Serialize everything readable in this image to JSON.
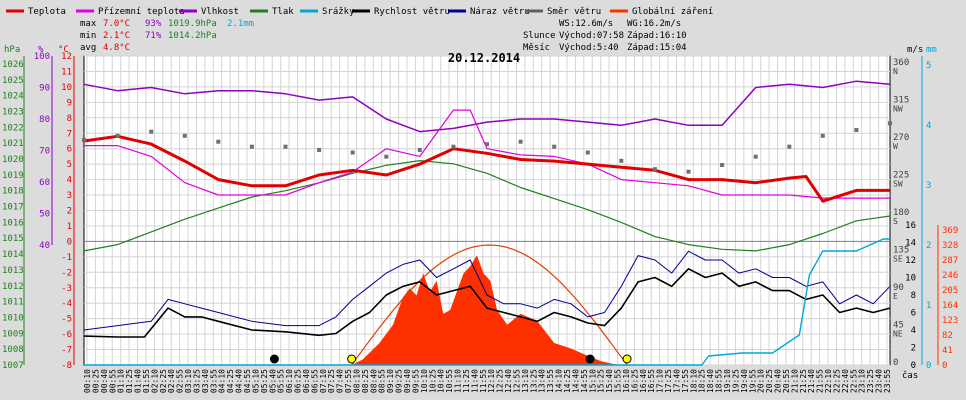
{
  "legend": [
    {
      "label": "Teplota",
      "color": "#e00000"
    },
    {
      "label": "Přízemní teplota",
      "color": "#e000e0"
    },
    {
      "label": "Vlhkost",
      "color": "#9000c0"
    },
    {
      "label": "Tlak",
      "color": "#208020"
    },
    {
      "label": "Srážky",
      "color": "#00a8d8"
    },
    {
      "label": "Rychlost větru",
      "color": "#000000"
    },
    {
      "label": "Náraz větru",
      "color": "#000090"
    },
    {
      "label": "Směr větru",
      "color": "#606060"
    },
    {
      "label": "Globální záření",
      "color": "#ff3000"
    }
  ],
  "stats": {
    "max_label": "max",
    "max_temp": "7.0°C",
    "max_hum": "93%",
    "max_press": "1019.9hPa",
    "max_rain": "2.1mm",
    "min_label": "min",
    "min_temp": "2.1°C",
    "min_hum": "71%",
    "min_press": "1014.2hPa",
    "avg_label": "avg",
    "avg_temp": "4.8°C"
  },
  "wind_info": {
    "ws": "WS:12.6m/s",
    "wg": "WG:16.2m/s"
  },
  "sun_info": {
    "label": "Slunce",
    "rise": "Východ:07:58",
    "set": "Západ:16:10"
  },
  "moon_info": {
    "label": "Měsíc",
    "rise": "Východ:5:40",
    "set": "Západ:15:04"
  },
  "colors": {
    "temp": "#e00000",
    "ground": "#e000e0",
    "hum": "#9000c0",
    "press": "#208020",
    "rain": "#00a8d8",
    "wind": "#000000",
    "gust": "#000090",
    "dir": "#707070",
    "rad": "#ff3000"
  },
  "chart_data": {
    "type": "line",
    "title": "20.12.2014",
    "xlabel": "čas",
    "x_ticks": [
      "00:10",
      "00:25",
      "00:40",
      "00:55",
      "01:10",
      "01:25",
      "01:40",
      "01:55",
      "02:10",
      "02:25",
      "02:40",
      "02:55",
      "03:10",
      "03:25",
      "03:40",
      "03:55",
      "04:10",
      "04:25",
      "04:40",
      "04:55",
      "05:10",
      "05:25",
      "05:40",
      "05:55",
      "06:10",
      "06:25",
      "06:40",
      "06:55",
      "07:10",
      "07:25",
      "07:40",
      "07:55",
      "08:10",
      "08:25",
      "08:40",
      "08:55",
      "09:10",
      "09:25",
      "09:40",
      "09:55",
      "10:10",
      "10:25",
      "10:40",
      "10:55",
      "11:10",
      "11:25",
      "11:40",
      "11:55",
      "12:10",
      "12:25",
      "12:40",
      "12:55",
      "13:10",
      "13:25",
      "13:40",
      "13:55",
      "14:10",
      "14:25",
      "14:40",
      "14:55",
      "15:10",
      "15:25",
      "15:40",
      "15:55",
      "16:10",
      "16:25",
      "16:40",
      "16:55",
      "17:10",
      "17:25",
      "17:40",
      "17:55",
      "18:10",
      "18:25",
      "18:40",
      "18:55",
      "19:10",
      "19:25",
      "19:40",
      "19:55",
      "20:10",
      "20:25",
      "20:40",
      "20:55",
      "21:10",
      "21:25",
      "21:40",
      "21:55",
      "22:10",
      "22:25",
      "22:40",
      "22:55",
      "23:10",
      "23:25",
      "23:40",
      "23:55"
    ],
    "axes": {
      "pressure": {
        "label": "hPa",
        "ticks": [
          "1026",
          "1025",
          "1024",
          "1023",
          "1022",
          "1021",
          "1020",
          "1019",
          "1018",
          "1017",
          "1016",
          "1015",
          "1014",
          "1013",
          "1012",
          "1011",
          "1010",
          "1009",
          "1008",
          "1007"
        ]
      },
      "humidity": {
        "label": "%",
        "ticks": [
          "100",
          "90",
          "80",
          "70",
          "60",
          "50",
          "40"
        ]
      },
      "temperature": {
        "label": "°C",
        "ticks": [
          "12",
          "11",
          "10",
          "9",
          "8",
          "7",
          "6",
          "5",
          "4",
          "3",
          "2",
          "1",
          "0",
          "-1",
          "-2",
          "-3",
          "-4",
          "-5",
          "-6",
          "-7",
          "-8"
        ]
      },
      "wind_dir": {
        "ticks": [
          "360",
          "315",
          "270",
          "225",
          "180",
          "135",
          "90",
          "45",
          "0"
        ],
        "names": [
          "N",
          "NW",
          "W",
          "SW",
          "S",
          "SE",
          "E",
          "NE"
        ]
      },
      "wind_speed": {
        "label": "m/s",
        "ticks": [
          "16",
          "14",
          "12",
          "10",
          "8",
          "6",
          "4",
          "2",
          "0"
        ]
      },
      "rain": {
        "label": "mm",
        "ticks": [
          "5",
          "4",
          "3",
          "2",
          "1",
          "0"
        ]
      },
      "radiation": {
        "ticks": [
          "369",
          "328",
          "287",
          "246",
          "205",
          "164",
          "123",
          "82",
          "41",
          "0"
        ]
      }
    },
    "series": [
      {
        "name": "Teplota",
        "unit": "°C",
        "t": [
          0,
          1,
          2,
          3,
          4,
          5,
          6,
          7,
          8,
          9,
          10,
          11,
          12,
          13,
          14,
          15,
          16,
          17,
          18,
          19,
          20,
          21,
          21.5,
          22,
          23,
          24
        ],
        "values": [
          6.5,
          6.8,
          6.3,
          5.2,
          4.0,
          3.6,
          3.6,
          4.3,
          4.6,
          4.3,
          5.0,
          6.0,
          5.7,
          5.3,
          5.2,
          5.0,
          4.8,
          4.6,
          4.0,
          4.0,
          3.8,
          4.1,
          4.2,
          2.6,
          3.3,
          3.3
        ]
      },
      {
        "name": "Přízemní teplota",
        "unit": "°C",
        "t": [
          0,
          1,
          2,
          3,
          4,
          5,
          6,
          7,
          8,
          9,
          10,
          11,
          11.5,
          12,
          13,
          14,
          15,
          16,
          17,
          18,
          19,
          20,
          21,
          22,
          23,
          24
        ],
        "values": [
          6.2,
          6.2,
          5.5,
          3.8,
          3.0,
          3.0,
          3.0,
          3.8,
          4.5,
          6.0,
          5.5,
          8.5,
          8.5,
          6.0,
          5.6,
          5.5,
          5.0,
          4.0,
          3.8,
          3.6,
          3.0,
          3.0,
          3.0,
          2.8,
          2.8,
          2.8
        ]
      },
      {
        "name": "Vlhkost",
        "unit": "%",
        "t": [
          0,
          1,
          2,
          3,
          4,
          5,
          6,
          7,
          8,
          9,
          10,
          11,
          12,
          13,
          14,
          15,
          16,
          17,
          18,
          19,
          20,
          21,
          22,
          23,
          24
        ],
        "values": [
          91,
          89,
          90,
          88,
          89,
          89,
          88,
          86,
          87,
          80,
          76,
          77,
          79,
          80,
          80,
          79,
          78,
          80,
          78,
          78,
          90,
          91,
          90,
          92,
          91
        ]
      },
      {
        "name": "Tlak",
        "unit": "hPa",
        "t": [
          0,
          1,
          2,
          3,
          4,
          5,
          6,
          7,
          8,
          9,
          10,
          11,
          12,
          13,
          14,
          15,
          16,
          17,
          18,
          19,
          20,
          21,
          22,
          23,
          24
        ],
        "values": [
          1014.2,
          1014.6,
          1015.4,
          1016.2,
          1016.9,
          1017.6,
          1018.0,
          1018.5,
          1019.1,
          1019.6,
          1019.9,
          1019.7,
          1019.1,
          1018.2,
          1017.5,
          1016.8,
          1016.0,
          1015.1,
          1014.6,
          1014.3,
          1014.2,
          1014.6,
          1015.3,
          1016.1,
          1016.4
        ]
      },
      {
        "name": "Srážky",
        "unit": "mm",
        "t": [
          0,
          18.4,
          18.6,
          19.6,
          20.5,
          21.3,
          21.6,
          22.0,
          23.0,
          23.8,
          24
        ],
        "values": [
          0,
          0,
          0.15,
          0.2,
          0.2,
          0.5,
          1.5,
          1.9,
          1.9,
          2.1,
          2.1
        ]
      },
      {
        "name": "Rychlost větru",
        "unit": "m/s",
        "t": [
          0,
          1,
          1.8,
          2.5,
          3,
          3.5,
          4,
          5,
          6,
          7,
          7.5,
          8,
          8.5,
          9,
          9.5,
          10,
          10.5,
          11,
          11.5,
          12,
          12.5,
          13,
          13.5,
          14,
          14.5,
          15,
          15.5,
          16,
          16.5,
          17,
          17.5,
          18,
          18.5,
          19,
          19.5,
          20,
          20.5,
          21,
          21.5,
          22,
          22.5,
          23,
          23.5,
          24
        ],
        "values": [
          3.3,
          3.2,
          3.2,
          6.5,
          5.5,
          5.5,
          5.0,
          4.0,
          3.8,
          3.4,
          3.6,
          5.0,
          6.0,
          8.0,
          9.0,
          9.5,
          8.0,
          8.5,
          9.0,
          6.5,
          6.0,
          5.5,
          5.0,
          6.0,
          5.5,
          4.8,
          4.5,
          6.5,
          9.5,
          10.0,
          9.0,
          11.0,
          10.0,
          10.5,
          9.0,
          9.5,
          8.5,
          8.5,
          7.5,
          8.0,
          6.0,
          6.5,
          6.0,
          6.5
        ]
      },
      {
        "name": "Náraz větru",
        "unit": "m/s",
        "t": [
          0,
          1,
          2,
          2.5,
          3,
          3.5,
          4,
          5,
          6,
          7,
          7.5,
          8,
          8.5,
          9,
          9.5,
          10,
          10.5,
          11,
          11.5,
          12,
          12.5,
          13,
          13.5,
          14,
          14.5,
          15,
          15.5,
          16,
          16.5,
          17,
          17.5,
          18,
          18.5,
          19,
          19.5,
          20,
          20.5,
          21,
          21.5,
          22,
          22.5,
          23,
          23.5,
          24
        ],
        "values": [
          4.0,
          4.5,
          5.0,
          7.5,
          7.0,
          6.5,
          6.0,
          5.0,
          4.5,
          4.5,
          5.5,
          7.5,
          9.0,
          10.5,
          11.5,
          12.0,
          10.0,
          11.0,
          12.0,
          8.0,
          7.0,
          7.0,
          6.5,
          7.5,
          7.0,
          5.5,
          6.0,
          9.0,
          12.5,
          12.0,
          10.5,
          13.0,
          12.0,
          12.0,
          10.5,
          11.0,
          10.0,
          10.0,
          9.0,
          9.5,
          7.0,
          8.0,
          7.0,
          9.0
        ]
      },
      {
        "name": "Směr větru",
        "unit": "°",
        "t": [
          0,
          1,
          2,
          3,
          4,
          5,
          6,
          7,
          8,
          9,
          10,
          11,
          12,
          13,
          14,
          15,
          16,
          17,
          18,
          19,
          20,
          21,
          22,
          23,
          24
        ],
        "values": [
          270,
          275,
          280,
          275,
          268,
          262,
          262,
          258,
          255,
          250,
          258,
          262,
          265,
          268,
          262,
          255,
          245,
          235,
          232,
          240,
          250,
          262,
          275,
          282,
          290
        ]
      },
      {
        "name": "Globální záření",
        "unit": "W/m²",
        "t": [
          7.97,
          8.3,
          8.8,
          9.2,
          9.5,
          9.7,
          9.9,
          10.1,
          10.3,
          10.5,
          10.7,
          10.9,
          11.1,
          11.3,
          11.5,
          11.7,
          11.9,
          12.1,
          12.3,
          12.6,
          13.0,
          13.5,
          14.0,
          14.5,
          15.0,
          15.4,
          15.8,
          16.17
        ],
        "values": [
          0,
          15,
          60,
          110,
          185,
          210,
          190,
          250,
          200,
          230,
          140,
          150,
          200,
          250,
          270,
          300,
          250,
          230,
          150,
          110,
          140,
          120,
          60,
          45,
          25,
          10,
          2,
          0
        ]
      }
    ],
    "sunrise_t": 7.97,
    "sunset_t": 16.17,
    "moonrise_t": 5.67,
    "moonset_t": 15.07,
    "grid": true,
    "legend_position": "top"
  }
}
